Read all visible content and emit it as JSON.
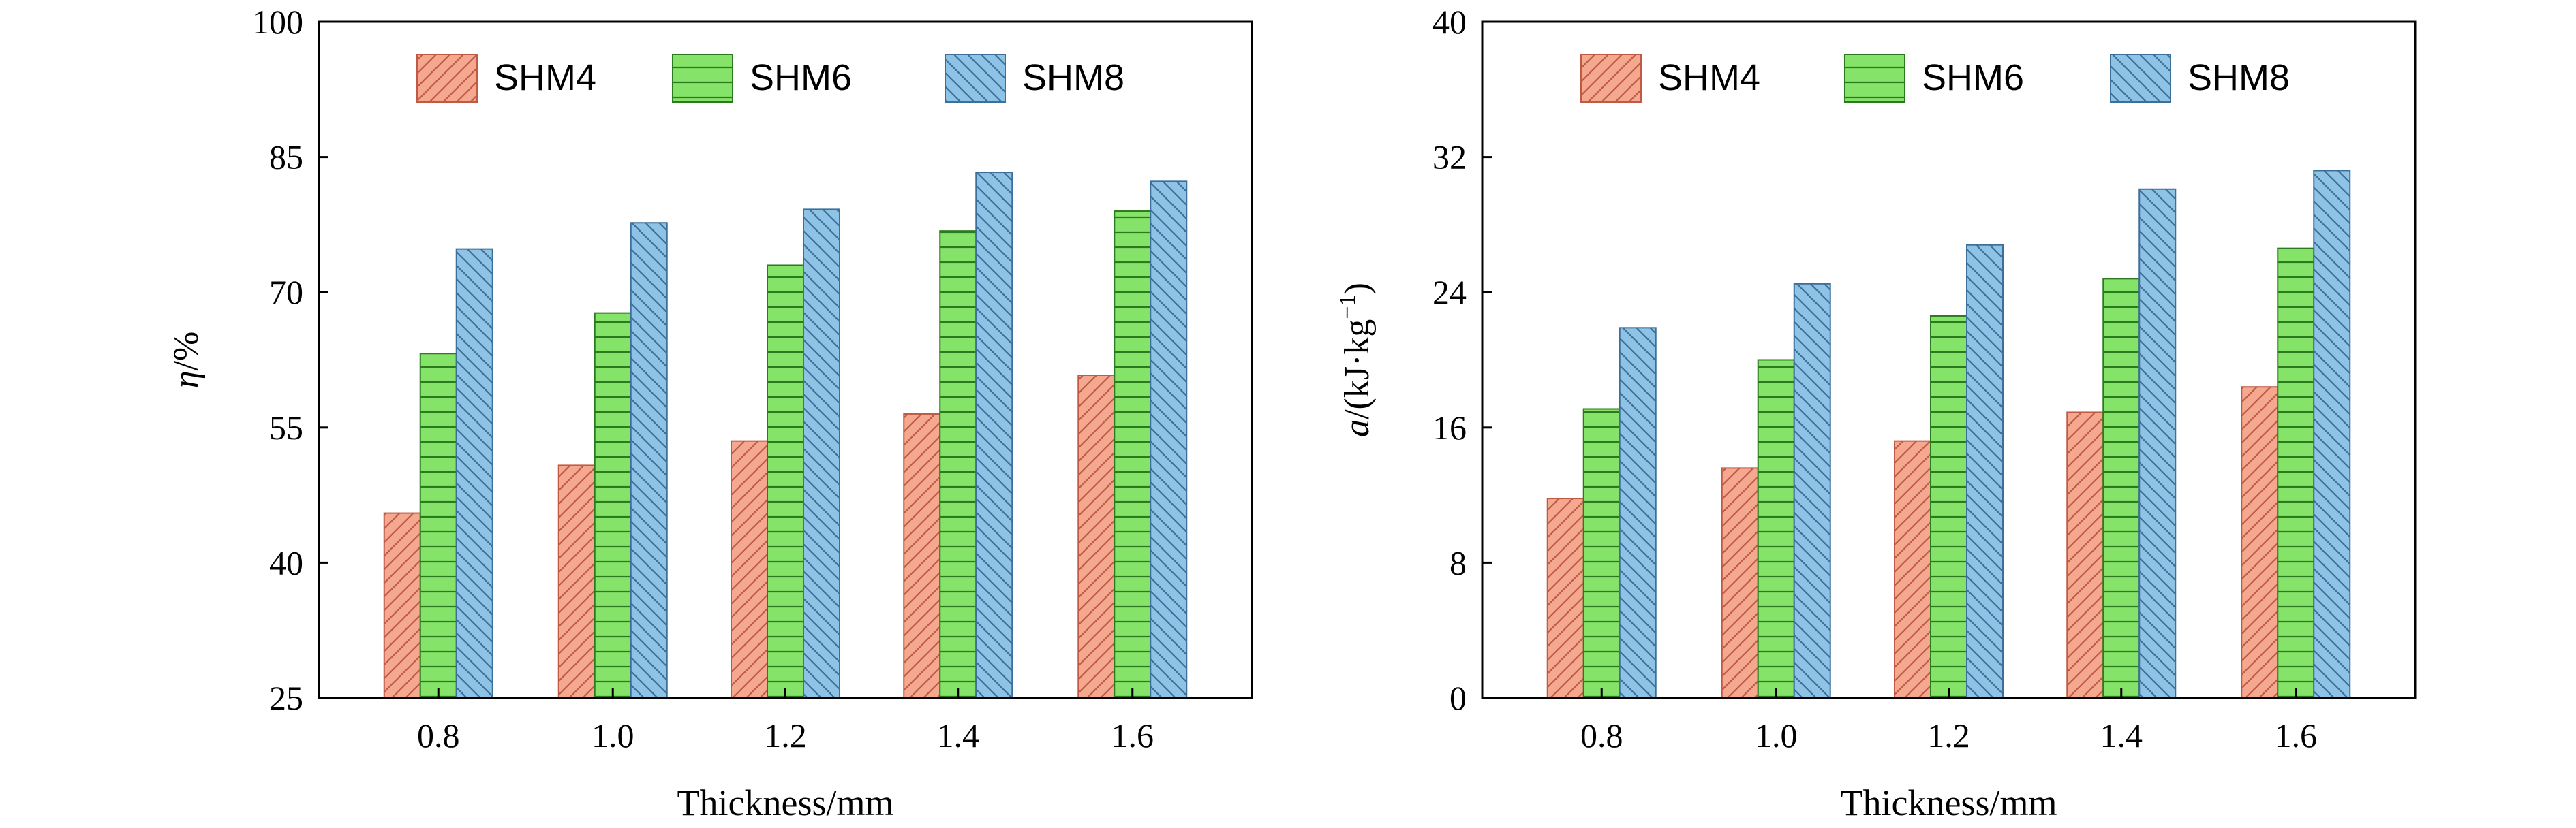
{
  "chart_data": [
    {
      "type": "bar",
      "categories": [
        "0.8",
        "1.0",
        "1.2",
        "1.4",
        "1.6"
      ],
      "series": [
        {
          "name": "SHM4",
          "values": [
            45.5,
            50.8,
            53.5,
            56.5,
            60.8
          ]
        },
        {
          "name": "SHM6",
          "values": [
            63.2,
            67.7,
            73.0,
            76.8,
            79.0
          ]
        },
        {
          "name": "SHM8",
          "values": [
            74.8,
            77.7,
            79.2,
            83.3,
            82.3
          ]
        }
      ],
      "xlabel": "Thickness/mm",
      "ylabel": {
        "symbol": "η",
        "unit": "/%"
      },
      "ylim": [
        25,
        100
      ],
      "yticks": [
        "25",
        "40",
        "55",
        "70",
        "85",
        "100"
      ],
      "legend_position": "top"
    },
    {
      "type": "bar",
      "categories": [
        "0.8",
        "1.0",
        "1.2",
        "1.4",
        "1.6"
      ],
      "series": [
        {
          "name": "SHM4",
          "values": [
            11.8,
            13.6,
            15.2,
            16.9,
            18.4
          ]
        },
        {
          "name": "SHM6",
          "values": [
            17.1,
            20.0,
            22.6,
            24.8,
            26.6
          ]
        },
        {
          "name": "SHM8",
          "values": [
            21.9,
            24.5,
            26.8,
            30.1,
            31.2
          ]
        }
      ],
      "xlabel": "Thickness/mm",
      "ylabel": {
        "symbol": "a",
        "unit_open": "/(kJ·kg",
        "unit_sup": "−1",
        "unit_close": ")"
      },
      "ylim": [
        0,
        40
      ],
      "yticks": [
        "0",
        "8",
        "16",
        "24",
        "32",
        "40"
      ],
      "legend_position": "top"
    }
  ],
  "styles": {
    "series": [
      {
        "fill": "#f4a88f",
        "stroke": "#c05a44",
        "pattern": "diag-fwd"
      },
      {
        "fill": "#86e36a",
        "stroke": "#2c7a1e",
        "pattern": "horizontal"
      },
      {
        "fill": "#8ec3e6",
        "stroke": "#3c6f99",
        "pattern": "diag-back"
      }
    ],
    "axis_color": "#000000"
  }
}
